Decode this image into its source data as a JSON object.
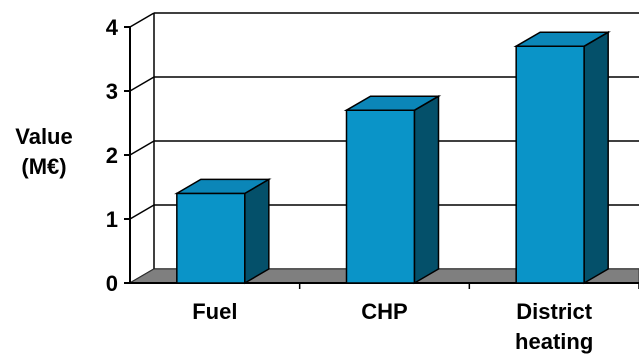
{
  "chart_data": {
    "type": "bar",
    "categories": [
      "Fuel",
      "CHP",
      "District heating"
    ],
    "category_label_lines": [
      [
        "Fuel"
      ],
      [
        "CHP"
      ],
      [
        "District",
        "heating"
      ]
    ],
    "values": [
      1.4,
      2.7,
      3.7
    ],
    "title": "",
    "xlabel": "",
    "ylabel_lines": [
      "Value",
      "(M€)"
    ],
    "ylim": [
      0,
      4
    ],
    "yticks": [
      0,
      1,
      2,
      3,
      4
    ],
    "grid": true,
    "style": "3d",
    "colors": {
      "bar_front": "#0a94c8",
      "bar_side": "#04506a",
      "bar_top": "#0b86b8",
      "floor": "#7f7f7f",
      "grid": "#000000"
    }
  }
}
